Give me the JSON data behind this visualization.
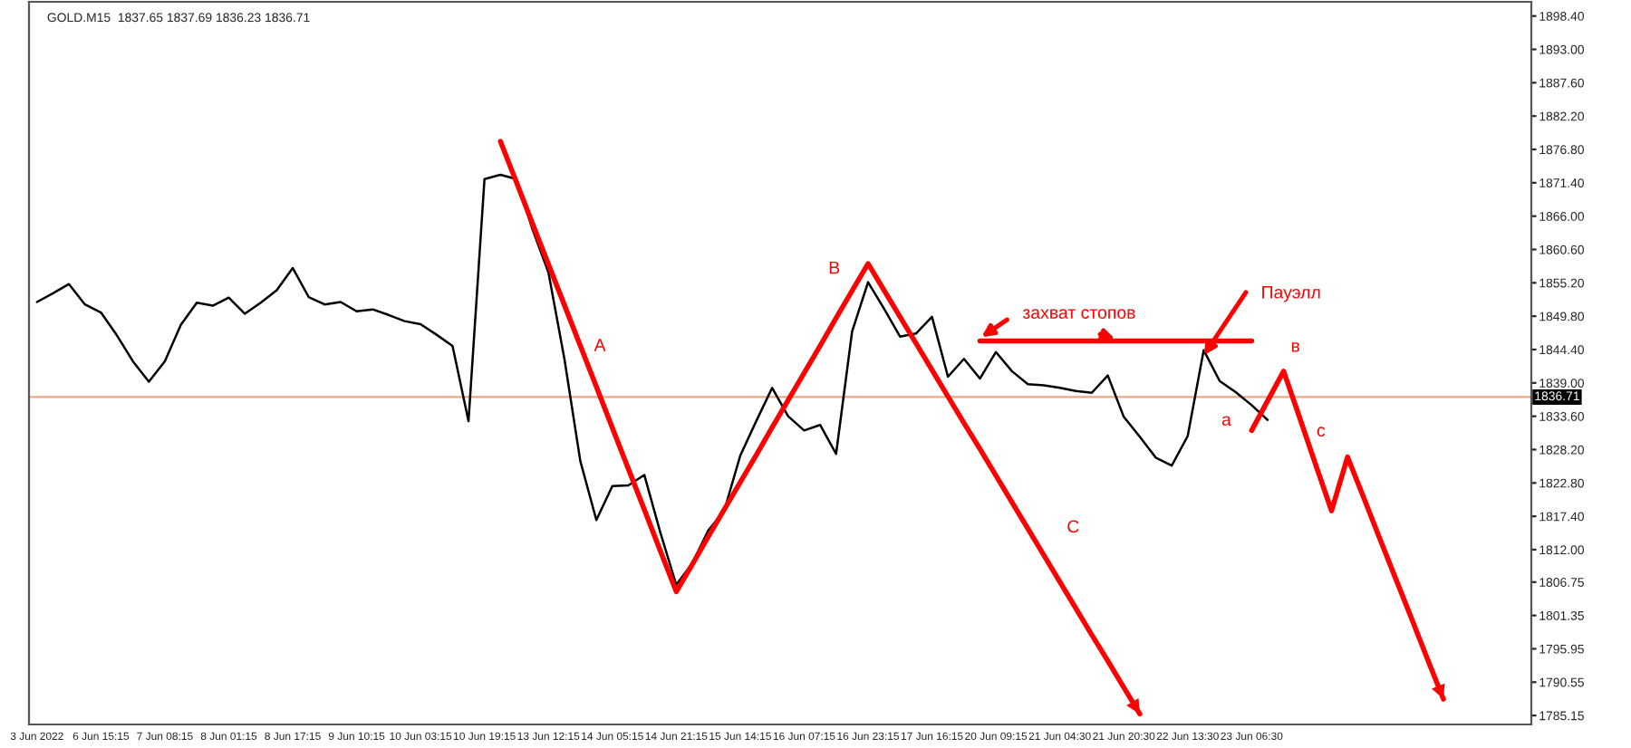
{
  "chart_data": {
    "type": "line",
    "categories": [
      "3 Jun 2022",
      null,
      null,
      null,
      "6 Jun 15:15",
      null,
      null,
      null,
      "7 Jun 08:15",
      null,
      null,
      null,
      "8 Jun 01:15",
      null,
      null,
      null,
      "8 Jun 17:15",
      null,
      null,
      null,
      "9 Jun 10:15",
      null,
      null,
      null,
      "10 Jun 03:15",
      null,
      null,
      null,
      "10 Jun 19:15",
      null,
      null,
      null,
      "13 Jun 12:15",
      null,
      null,
      null,
      "14 Jun 05:15",
      null,
      null,
      null,
      "14 Jun 21:15",
      null,
      null,
      null,
      "15 Jun 14:15",
      null,
      null,
      null,
      "16 Jun 07:15",
      null,
      null,
      null,
      "16 Jun 23:15",
      null,
      null,
      null,
      "17 Jun 16:15",
      null,
      null,
      null,
      "20 Jun 09:15",
      null,
      null,
      null,
      "21 Jun 04:30",
      null,
      null,
      null,
      "21 Jun 20:30",
      null,
      null,
      null,
      "22 Jun 13:30",
      null,
      null,
      null,
      "23 Jun 06:30",
      null,
      null,
      null,
      null,
      null,
      null,
      null,
      null,
      null,
      null,
      null,
      null,
      null,
      null,
      null,
      null,
      null
    ],
    "ylim": [
      1783.7,
      1900.7
    ],
    "yticks": [
      {
        "value": 1898.4,
        "label": "1898.40"
      },
      {
        "value": 1893.0,
        "label": "1893.00"
      },
      {
        "value": 1887.6,
        "label": "1887.60"
      },
      {
        "value": 1882.2,
        "label": "1882.20"
      },
      {
        "value": 1876.8,
        "label": "1876.80"
      },
      {
        "value": 1871.4,
        "label": "1871.40"
      },
      {
        "value": 1866.0,
        "label": "1866.00"
      },
      {
        "value": 1860.6,
        "label": "1860.60"
      },
      {
        "value": 1855.2,
        "label": "1855.20"
      },
      {
        "value": 1849.8,
        "label": "1849.80"
      },
      {
        "value": 1844.4,
        "label": "1844.40"
      },
      {
        "value": 1839.0,
        "label": "1839.00"
      },
      {
        "value": 1833.6,
        "label": "1833.60"
      },
      {
        "value": 1828.2,
        "label": "1828.20"
      },
      {
        "value": 1822.8,
        "label": "1822.80"
      },
      {
        "value": 1817.4,
        "label": "1817.40"
      },
      {
        "value": 1812.0,
        "label": "1812.00"
      },
      {
        "value": 1806.75,
        "label": "1806.75"
      },
      {
        "value": 1801.35,
        "label": "1801.35"
      },
      {
        "value": 1795.95,
        "label": "1795.95"
      },
      {
        "value": 1790.55,
        "label": "1790.55"
      },
      {
        "value": 1785.15,
        "label": "1785.15"
      }
    ],
    "series": [
      {
        "color": "#000000",
        "values": [
          1852.1,
          1853.5,
          1855.0,
          1851.7,
          1850.4,
          1846.7,
          1842.5,
          1839.2,
          1842.5,
          1848.4,
          1852.0,
          1851.5,
          1852.8,
          1850.2,
          1852.0,
          1854.0,
          1857.6,
          1852.9,
          1851.7,
          1852.1,
          1850.6,
          1850.9,
          1850.0,
          1849.0,
          1848.5,
          1846.8,
          1845.0,
          1832.8,
          1872.0,
          1872.7,
          1872.0,
          1863.9,
          1856.9,
          1842.9,
          1826.3,
          1816.8,
          1822.3,
          1822.4,
          1824.1,
          1814.8,
          1806.3,
          1809.8,
          1815.1,
          1818.3,
          1827.2,
          1832.8,
          1838.2,
          1833.6,
          1831.3,
          1832.2,
          1827.5,
          1847.3,
          1855.3,
          1851.0,
          1846.5,
          1847.0,
          1849.7,
          1840.0,
          1842.9,
          1839.7,
          1844.0,
          1840.9,
          1838.8,
          1838.6,
          1838.2,
          1837.7,
          1837.4,
          1840.2,
          1833.5,
          1830.3,
          1826.9,
          1825.6,
          1830.4,
          1844.3,
          1839.3,
          1837.5,
          1835.4,
          1833.0,
          null,
          null,
          null,
          null,
          null,
          null,
          null,
          null,
          null,
          null,
          null,
          null,
          null,
          null,
          null,
          null
        ]
      },
      {
        "color": "#ff0000",
        "values": [
          null,
          null,
          null,
          null,
          null,
          null,
          null,
          null,
          null,
          null,
          null,
          null,
          null,
          null,
          null,
          null,
          null,
          null,
          null,
          null,
          null,
          null,
          null,
          null,
          null,
          null,
          null,
          null,
          null,
          1878.1,
          1871.5,
          1864.8,
          1858.2,
          1851.6,
          1845.0,
          1838.4,
          1831.7,
          1825.1,
          1818.5,
          1811.8,
          1805.2,
          1809.6,
          1814.1,
          1818.5,
          1822.9,
          1827.3,
          1831.8,
          1836.2,
          1840.6,
          1845.0,
          1849.5,
          1853.9,
          1858.3,
          1854.0,
          1849.7,
          1845.4,
          1841.1,
          1836.8,
          1832.5,
          1828.3,
          1824.0,
          1819.7,
          1815.4,
          1811.1,
          1806.8,
          1802.5,
          1798.2,
          1794.0,
          1789.7,
          1785.4,
          null,
          null,
          null,
          null,
          null,
          null,
          null,
          null,
          null,
          null,
          null,
          null,
          null,
          null,
          null,
          null,
          null,
          null,
          null,
          null,
          null,
          null,
          null,
          null
        ]
      },
      {
        "color": "#ff0000",
        "values": [
          null,
          null,
          null,
          null,
          null,
          null,
          null,
          null,
          null,
          null,
          null,
          null,
          null,
          null,
          null,
          null,
          null,
          null,
          null,
          null,
          null,
          null,
          null,
          null,
          null,
          null,
          null,
          null,
          null,
          null,
          null,
          null,
          null,
          null,
          null,
          null,
          null,
          null,
          null,
          null,
          null,
          null,
          null,
          null,
          null,
          null,
          null,
          null,
          null,
          null,
          null,
          null,
          null,
          null,
          null,
          null,
          null,
          null,
          null,
          null,
          null,
          null,
          null,
          null,
          null,
          null,
          null,
          null,
          null,
          null,
          null,
          null,
          null,
          null,
          null,
          null,
          1831.3,
          1836.1,
          1840.9,
          1833.4,
          1825.8,
          1818.3,
          1827.0,
          1820.5,
          1813.9,
          1807.4,
          1800.9,
          1794.3,
          1787.8,
          null,
          null,
          null,
          null,
          null
        ]
      },
      {
        "color": "#ff0000",
        "values": [
          null,
          null,
          null,
          null,
          null,
          null,
          null,
          null,
          null,
          null,
          null,
          null,
          null,
          null,
          null,
          null,
          null,
          null,
          null,
          null,
          null,
          null,
          null,
          null,
          null,
          null,
          null,
          null,
          null,
          null,
          null,
          null,
          null,
          null,
          null,
          null,
          null,
          null,
          null,
          null,
          null,
          null,
          null,
          null,
          null,
          null,
          null,
          null,
          null,
          null,
          null,
          null,
          null,
          null,
          null,
          null,
          null,
          null,
          null,
          1845.8,
          1845.8,
          1845.8,
          1845.8,
          1845.8,
          1845.8,
          1845.8,
          1845.8,
          1845.8,
          1845.8,
          1845.8,
          1845.8,
          1845.8,
          1845.8,
          1845.8,
          1845.8,
          1845.8,
          1845.8,
          null,
          null,
          null,
          null,
          null,
          null,
          null,
          null,
          null,
          null,
          null,
          null,
          null,
          null,
          null,
          null,
          null
        ]
      }
    ],
    "ref_lines": [
      {
        "axis": "y",
        "value": 1836.71,
        "label": "1836.71",
        "color": "#f4a582"
      }
    ],
    "annotations": [
      "GOLD.M15  1837.65 1837.69 1836.23 1836.71",
      "A",
      "B",
      "C",
      "в",
      "а",
      "с",
      "захват стопов",
      "Пауэлл"
    ],
    "line_style": "solid",
    "marker": "none",
    "grid": false,
    "legend": false
  }
}
